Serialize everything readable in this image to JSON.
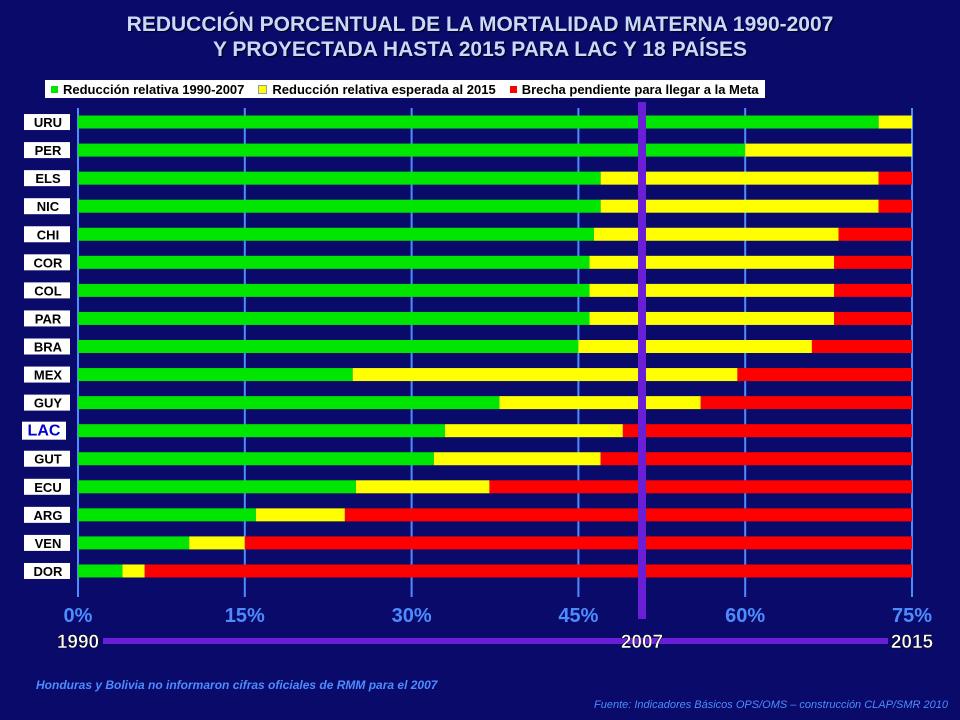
{
  "title_line1": "REDUCCIÓN PORCENTUAL DE LA MORTALIDAD MATERNA 1990-2007",
  "title_line2": "Y PROYECTADA HASTA 2015 PARA LAC Y 18 PAÍSES",
  "colors": {
    "background": "#0a0a6b",
    "green": "#00e600",
    "yellow": "#ffff00",
    "red": "#ff0000",
    "axis_text": "#4d8cff",
    "timeline": "#6a1ed6",
    "lac_label": "#0000cc"
  },
  "legend": [
    {
      "label": "Reducción relativa 1990-2007",
      "color": "#00e600"
    },
    {
      "label": "Reducción relativa esperada al 2015",
      "color": "#ffff00"
    },
    {
      "label": "Brecha pendiente para llegar a la Meta",
      "color": "#ff0000"
    }
  ],
  "timeline": {
    "start": "1990",
    "middle": "2007",
    "end": "2015"
  },
  "footnote": "Honduras y Bolivia no informaron cifras oficiales de RMM para el 2007",
  "source": "Fuente: Indicadores Básicos OPS/OMS – construcción CLAP/SMR 2010",
  "chart_data": {
    "type": "bar",
    "orientation": "horizontal",
    "stacked": true,
    "x_unit": "%",
    "xlim": [
      0,
      75
    ],
    "x_ticks": [
      0,
      15,
      30,
      45,
      60,
      75
    ],
    "x_tick_labels": [
      "0%",
      "15%",
      "30%",
      "45%",
      "60%",
      "75%"
    ],
    "reference_line_label": "2007",
    "categories": [
      "URU",
      "PER",
      "ELS",
      "NIC",
      "CHI",
      "COR",
      "COL",
      "PAR",
      "BRA",
      "MEX",
      "GUY",
      "LAC",
      "GUT",
      "ECU",
      "ARG",
      "VEN",
      "DOR"
    ],
    "highlight_category": "LAC",
    "series": [
      {
        "name": "Reducción relativa 1990-2007",
        "values": [
          72,
          60,
          47,
          47,
          46.4,
          46,
          46,
          46,
          45,
          24.7,
          37.9,
          33,
          32,
          25,
          16,
          10,
          4
        ]
      },
      {
        "name": "Reducción relativa esperada al 2015",
        "values": [
          3,
          15,
          25,
          25,
          22,
          22,
          22,
          22,
          21,
          34.6,
          18.1,
          16,
          15,
          12,
          8,
          5,
          2
        ]
      },
      {
        "name": "Brecha pendiente para llegar a la Meta",
        "values": [
          0,
          0,
          3,
          3,
          6.6,
          7,
          7,
          7,
          9,
          15.7,
          19,
          26,
          28,
          38,
          51,
          60,
          69
        ]
      }
    ]
  }
}
